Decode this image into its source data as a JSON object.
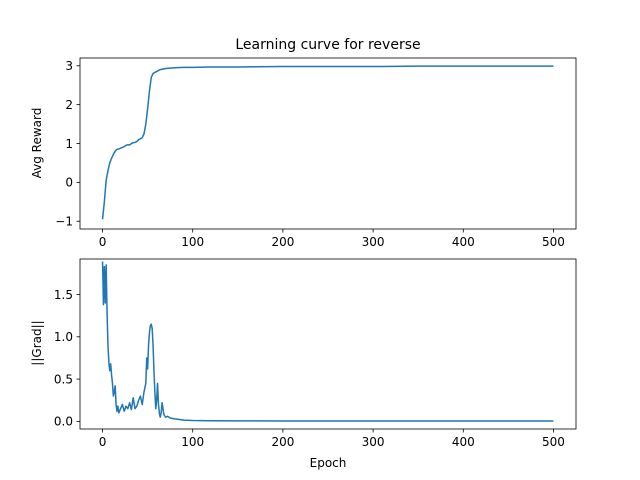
{
  "chart_data": [
    {
      "type": "line",
      "title": "Learning curve for reverse",
      "xlabel": "",
      "ylabel": "Avg Reward",
      "xlim": [
        -25,
        525
      ],
      "ylim": [
        -1.2,
        3.2
      ],
      "xticks": [
        0,
        100,
        200,
        300,
        400,
        500
      ],
      "xtick_labels": [
        "0",
        "100",
        "200",
        "300",
        "400",
        "500"
      ],
      "yticks": [
        -1,
        0,
        1,
        2,
        3
      ],
      "ytick_labels": [
        "−1",
        "0",
        "1",
        "2",
        "3"
      ],
      "grid": false,
      "color": "#1f77b4",
      "series": [
        {
          "x": [
            0,
            2,
            4,
            6,
            8,
            10,
            12,
            14,
            16,
            18,
            20,
            22,
            24,
            26,
            28,
            30,
            32,
            34,
            36,
            38,
            40,
            42,
            44,
            46,
            48,
            50,
            52,
            54,
            56,
            58,
            60,
            62,
            64,
            66,
            68,
            70,
            75,
            80,
            90,
            100,
            120,
            150,
            200,
            250,
            300,
            350,
            400,
            450,
            500
          ],
          "y": [
            -0.95,
            -0.5,
            0.05,
            0.3,
            0.5,
            0.62,
            0.72,
            0.8,
            0.85,
            0.86,
            0.88,
            0.9,
            0.92,
            0.95,
            0.97,
            0.96,
            1.0,
            1.02,
            1.03,
            1.05,
            1.1,
            1.12,
            1.15,
            1.25,
            1.5,
            1.9,
            2.35,
            2.7,
            2.8,
            2.83,
            2.85,
            2.88,
            2.9,
            2.91,
            2.92,
            2.93,
            2.94,
            2.95,
            2.96,
            2.96,
            2.97,
            2.97,
            2.98,
            2.98,
            2.98,
            2.99,
            2.99,
            2.99,
            2.99
          ]
        }
      ]
    },
    {
      "type": "line",
      "title": "",
      "xlabel": "Epoch",
      "ylabel": "||Grad||",
      "xlim": [
        -25,
        525
      ],
      "ylim": [
        -0.09,
        1.92
      ],
      "xticks": [
        0,
        100,
        200,
        300,
        400,
        500
      ],
      "xtick_labels": [
        "0",
        "100",
        "200",
        "300",
        "400",
        "500"
      ],
      "yticks": [
        0.0,
        0.5,
        1.0,
        1.5
      ],
      "ytick_labels": [
        "0.0",
        "0.5",
        "1.0",
        "1.5"
      ],
      "grid": false,
      "color": "#1f77b4",
      "series": [
        {
          "x": [
            0,
            1,
            2,
            3,
            4,
            5,
            6,
            7,
            8,
            9,
            10,
            11,
            12,
            13,
            14,
            15,
            16,
            17,
            18,
            20,
            22,
            24,
            26,
            28,
            30,
            32,
            34,
            36,
            38,
            40,
            42,
            44,
            46,
            48,
            49,
            50,
            51,
            52,
            53,
            54,
            55,
            56,
            57,
            58,
            59,
            60,
            61,
            62,
            63,
            64,
            65,
            66,
            68,
            70,
            72,
            75,
            80,
            90,
            100,
            120,
            150,
            200,
            300,
            400,
            500
          ],
          "y": [
            1.89,
            1.38,
            1.83,
            1.4,
            1.85,
            1.3,
            0.9,
            0.7,
            0.6,
            0.68,
            0.55,
            0.45,
            0.3,
            0.35,
            0.42,
            0.2,
            0.12,
            0.18,
            0.1,
            0.15,
            0.2,
            0.12,
            0.18,
            0.15,
            0.22,
            0.14,
            0.28,
            0.15,
            0.18,
            0.25,
            0.3,
            0.2,
            0.35,
            0.45,
            0.75,
            0.62,
            0.9,
            1.05,
            1.13,
            1.15,
            1.1,
            0.9,
            0.6,
            0.35,
            0.15,
            0.25,
            0.45,
            0.2,
            0.1,
            0.05,
            0.1,
            0.22,
            0.08,
            0.05,
            0.06,
            0.04,
            0.03,
            0.015,
            0.01,
            0.008,
            0.006,
            0.005,
            0.005,
            0.005,
            0.005
          ]
        }
      ]
    }
  ]
}
